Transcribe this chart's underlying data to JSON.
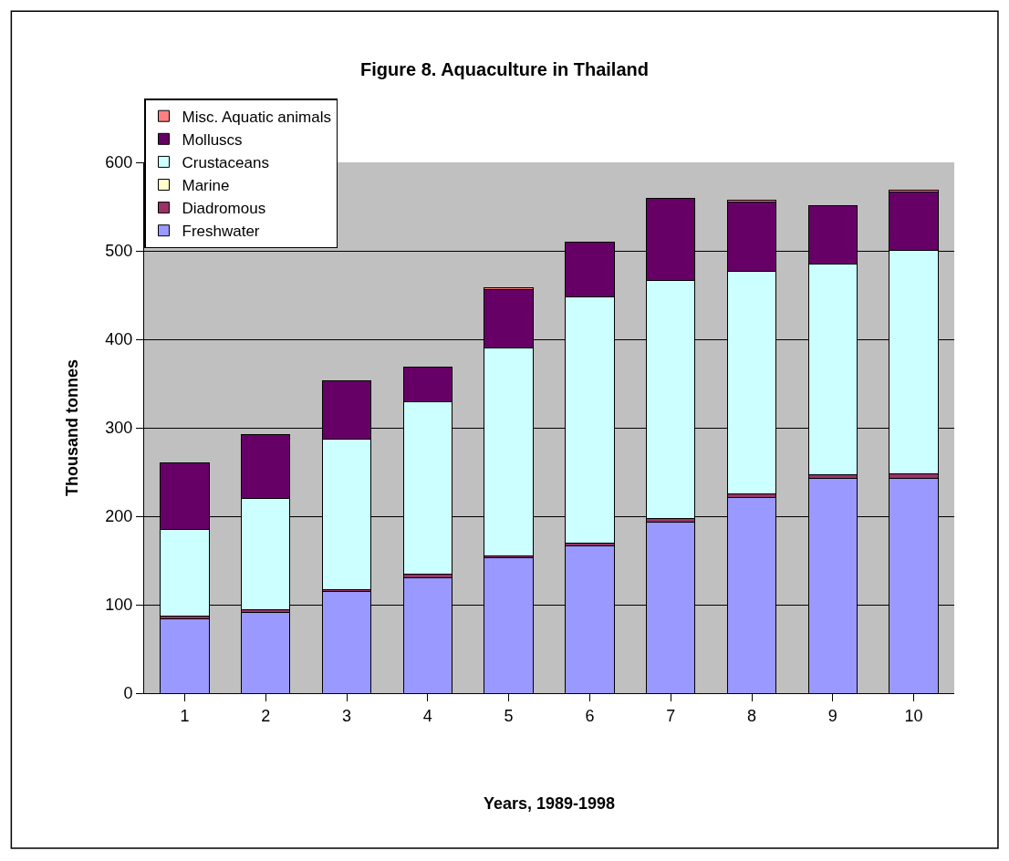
{
  "chart_data": {
    "type": "bar",
    "title": "Figure 8. Aquaculture in Thailand",
    "xlabel": "Years, 1989-1998",
    "ylabel": "Thousand tonnes",
    "categories": [
      "1",
      "2",
      "3",
      "4",
      "5",
      "6",
      "7",
      "8",
      "9",
      "10"
    ],
    "stacked": true,
    "series": [
      {
        "name": "Freshwater",
        "color": "#9999ff",
        "values": [
          84,
          91,
          115,
          130,
          153,
          167,
          193,
          221,
          243,
          243
        ]
      },
      {
        "name": "Diadromous",
        "color": "#993366",
        "values": [
          3,
          3,
          2,
          5,
          2,
          3,
          4,
          4,
          4,
          5
        ]
      },
      {
        "name": "Marine",
        "color": "#ffffcc",
        "values": [
          null,
          null,
          null,
          null,
          null,
          null,
          null,
          null,
          null,
          null
        ]
      },
      {
        "name": "Crustaceans",
        "color": "#ccffff",
        "values": [
          98,
          126,
          170,
          194,
          235,
          278,
          269,
          252,
          238,
          253
        ]
      },
      {
        "name": "Molluscs",
        "color": "#660066",
        "values": [
          75,
          72,
          66,
          40,
          66,
          62,
          93,
          78,
          66,
          66
        ]
      },
      {
        "name": "Misc. Aquatic animals",
        "color": "#ff8080",
        "values": [
          null,
          null,
          null,
          null,
          2,
          null,
          null,
          2,
          null,
          2
        ]
      }
    ],
    "ylim": [
      0,
      600
    ],
    "yticks": [
      0,
      100,
      200,
      300,
      400,
      500,
      600
    ],
    "grid": "y",
    "legend": "top left"
  }
}
